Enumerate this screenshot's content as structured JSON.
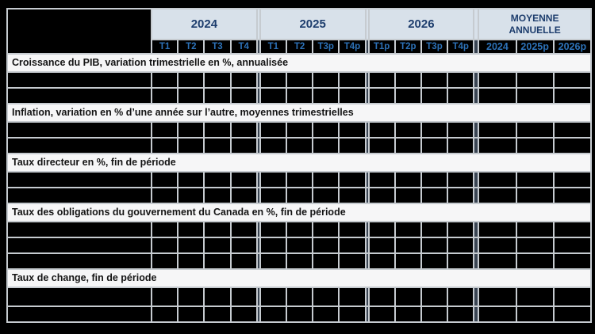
{
  "table": {
    "corner_label": "",
    "header": {
      "year_groups": [
        {
          "label": "2024",
          "columns": [
            "T1",
            "T2",
            "T3",
            "T4"
          ]
        },
        {
          "label": "2025",
          "columns": [
            "T1",
            "T2",
            "T3p",
            "T4p"
          ]
        },
        {
          "label": "2026",
          "columns": [
            "T1p",
            "T2p",
            "T3p",
            "T4p"
          ]
        },
        {
          "label": "MOYENNE ANNUELLE",
          "columns": [
            "2024",
            "2025p",
            "2026p"
          ]
        }
      ]
    },
    "sections": [
      {
        "title": "Croissance du PIB, variation trimestrielle en %, annualisée",
        "data_rows": 2
      },
      {
        "title": "Inflation, variation en % d’une année sur l’autre, moyennes trimestrielles",
        "data_rows": 2
      },
      {
        "title": "Taux directeur en %, fin de période",
        "data_rows": 2
      },
      {
        "title": "Taux des obligations du gouvernement du Canada en %, fin de période",
        "data_rows": 3
      },
      {
        "title": "Taux de change, fin de période",
        "data_rows": 2
      }
    ],
    "data_cell_text": "",
    "colors": {
      "page_bg": "#000000",
      "year_band_bg": "#d8e1ea",
      "year_text": "#1d3d6d",
      "quarter_text": "#2d72b8",
      "section_bg": "#f6f6f7",
      "gridline": "#c6cbd0",
      "group_separator": "#3a4553",
      "cell_bg": "#000000"
    }
  }
}
